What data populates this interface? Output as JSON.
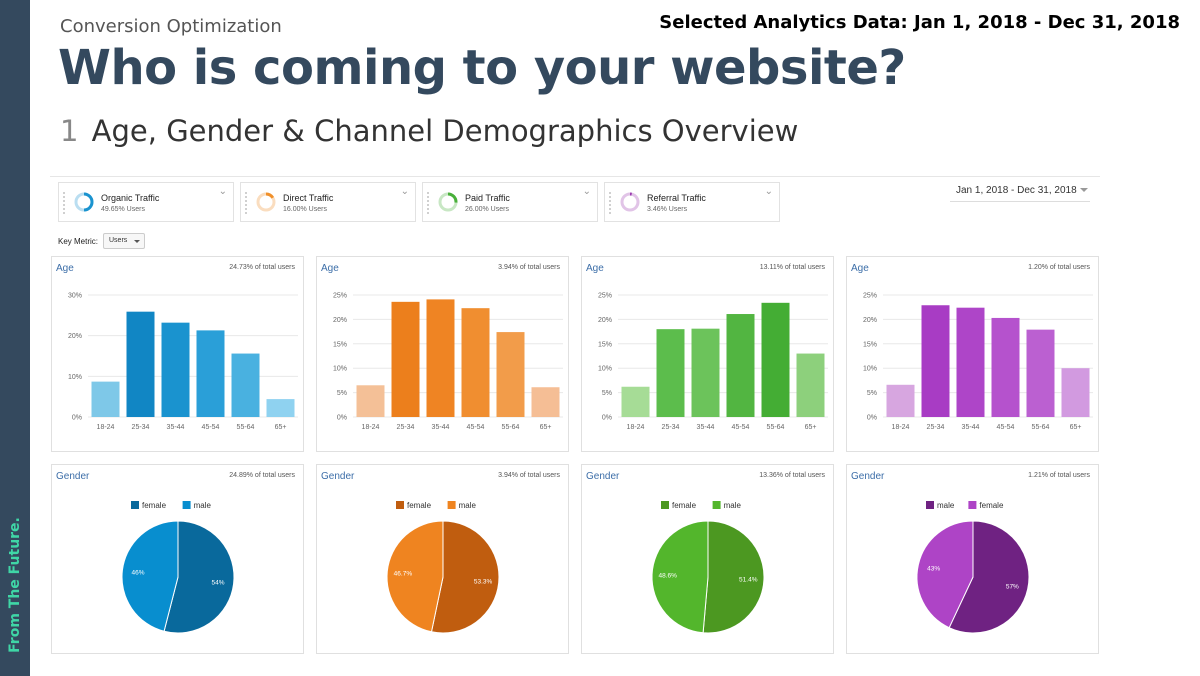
{
  "header": {
    "kicker": "Conversion Optimization",
    "date_range": "Selected Analytics Data: Jan 1, 2018 - Dec 31, 2018",
    "title": "Who is coming to your website?",
    "subtitle_number": "1",
    "subtitle": "Age, Gender & Channel Demographics Overview"
  },
  "sidebar": {
    "brand": "From The Future."
  },
  "segments": [
    {
      "name": "Organic Traffic",
      "value": "49.65% Users",
      "pct": 49.65,
      "color": "#1a93cf"
    },
    {
      "name": "Direct Traffic",
      "value": "16.00% Users",
      "pct": 16.0,
      "color": "#f0902a"
    },
    {
      "name": "Paid Traffic",
      "value": "26.00% Users",
      "pct": 26.0,
      "color": "#49b03a"
    },
    {
      "name": "Referral Traffic",
      "value": "3.46% Users",
      "pct": 3.46,
      "color": "#9b3bb0"
    }
  ],
  "date_selector": {
    "label": "Jan 1, 2018 - Dec 31, 2018"
  },
  "key_metric": {
    "label": "Key Metric:",
    "value": "Users"
  },
  "chart_data": [
    {
      "type": "bar",
      "title": "Age",
      "note": "24.73% of total users",
      "categories": [
        "18-24",
        "25-34",
        "35-44",
        "45-54",
        "55-64",
        "65+"
      ],
      "values": [
        8.7,
        25.9,
        23.2,
        21.3,
        15.6,
        4.4
      ],
      "ylim": [
        0,
        30
      ],
      "yticks": [
        "0%",
        "10%",
        "20%",
        "30%"
      ],
      "ytick_values": [
        0,
        10,
        20,
        30
      ],
      "colors": [
        "#7ec8e8",
        "#1186c4",
        "#1a93cf",
        "#2a9fd8",
        "#49b1e0",
        "#8fd2f0"
      ]
    },
    {
      "type": "bar",
      "title": "Age",
      "note": "3.94% of total users",
      "categories": [
        "18-24",
        "25-34",
        "35-44",
        "45-54",
        "55-64",
        "65+"
      ],
      "values": [
        6.5,
        23.6,
        24.1,
        22.3,
        17.4,
        6.1
      ],
      "ylim": [
        0,
        25
      ],
      "yticks": [
        "0%",
        "5%",
        "10%",
        "15%",
        "20%",
        "25%"
      ],
      "ytick_values": [
        0,
        5,
        10,
        15,
        20,
        25
      ],
      "colors": [
        "#f4c097",
        "#ec7f1c",
        "#ef8423",
        "#f08e30",
        "#f29c4a",
        "#f5be95"
      ]
    },
    {
      "type": "bar",
      "title": "Age",
      "note": "13.11% of total users",
      "categories": [
        "18-24",
        "25-34",
        "35-44",
        "45-54",
        "55-64",
        "65+"
      ],
      "values": [
        6.2,
        18.0,
        18.1,
        21.1,
        23.4,
        13.0
      ],
      "ylim": [
        0,
        25
      ],
      "yticks": [
        "0%",
        "5%",
        "10%",
        "15%",
        "20%",
        "25%"
      ],
      "ytick_values": [
        0,
        5,
        10,
        15,
        20,
        25
      ],
      "colors": [
        "#a6dc96",
        "#5cbd4c",
        "#6cc35b",
        "#52b541",
        "#44ad34",
        "#8dd07c"
      ]
    },
    {
      "type": "bar",
      "title": "Age",
      "note": "1.20% of total users",
      "categories": [
        "18-24",
        "25-34",
        "35-44",
        "45-54",
        "55-64",
        "65+"
      ],
      "values": [
        6.6,
        22.9,
        22.4,
        20.3,
        17.9,
        10.0
      ],
      "ylim": [
        0,
        25
      ],
      "yticks": [
        "0%",
        "5%",
        "10%",
        "15%",
        "20%",
        "25%"
      ],
      "ytick_values": [
        0,
        5,
        10,
        15,
        20,
        25
      ],
      "colors": [
        "#d7a6e0",
        "#a83cc4",
        "#ae45c8",
        "#b552cd",
        "#bb60d1",
        "#d29ae0"
      ]
    },
    {
      "type": "pie",
      "title": "Gender",
      "note": "24.89% of total users",
      "slices": [
        {
          "name": "female",
          "value": 54,
          "label": "54%",
          "color": "#09699c"
        },
        {
          "name": "male",
          "value": 46,
          "label": "46%",
          "color": "#088ecf"
        }
      ],
      "legend": [
        {
          "name": "female",
          "color": "#09699c"
        },
        {
          "name": "male",
          "color": "#088ecf"
        }
      ]
    },
    {
      "type": "pie",
      "title": "Gender",
      "note": "3.94% of total users",
      "slices": [
        {
          "name": "female",
          "value": 53.3,
          "label": "53.3%",
          "color": "#c05d0f"
        },
        {
          "name": "male",
          "value": 46.7,
          "label": "46.7%",
          "color": "#ef8420"
        }
      ],
      "legend": [
        {
          "name": "female",
          "color": "#c05d0f"
        },
        {
          "name": "male",
          "color": "#ef8420"
        }
      ]
    },
    {
      "type": "pie",
      "title": "Gender",
      "note": "13.36% of total users",
      "slices": [
        {
          "name": "female",
          "value": 51.4,
          "label": "51.4%",
          "color": "#4c9821"
        },
        {
          "name": "male",
          "value": 48.6,
          "label": "48.6%",
          "color": "#53b62c"
        }
      ],
      "legend": [
        {
          "name": "female",
          "color": "#4c9821"
        },
        {
          "name": "male",
          "color": "#53b62c"
        }
      ]
    },
    {
      "type": "pie",
      "title": "Gender",
      "note": "1.21% of total users",
      "slices": [
        {
          "name": "male",
          "value": 57,
          "label": "57%",
          "color": "#6f2282"
        },
        {
          "name": "female",
          "value": 43,
          "label": "43%",
          "color": "#ae44c6"
        }
      ],
      "legend": [
        {
          "name": "male",
          "color": "#6f2282"
        },
        {
          "name": "female",
          "color": "#ae44c6"
        }
      ]
    }
  ]
}
